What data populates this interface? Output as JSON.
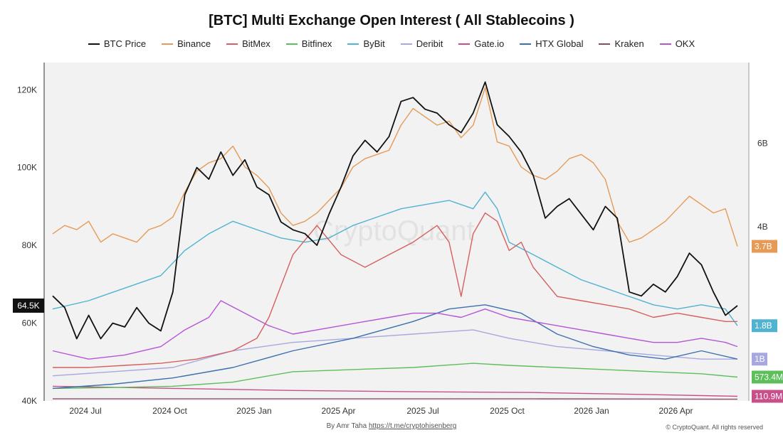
{
  "chart_data": {
    "type": "line",
    "title": "[BTC] Multi Exchange Open Interest ( All Stablecoins )",
    "x_ticks": [
      "2024 Jul",
      "2024 Oct",
      "2025 Jan",
      "2025 Apr",
      "2025 Jul",
      "2025 Oct",
      "2026 Jan",
      "2026 Apr"
    ],
    "x_range": [
      "2024-06",
      "2026-06"
    ],
    "left_axis": {
      "ticks": [
        "40K",
        "60K",
        "80K",
        "100K",
        "120K"
      ],
      "ylim": [
        40000,
        127000
      ]
    },
    "right_axis": {
      "ticks": [
        "4B",
        "6B"
      ],
      "ylim": [
        0,
        8100000000
      ]
    },
    "current_price_label": "64.5K",
    "grid": false,
    "legend_position": "top",
    "series": [
      {
        "name": "BTC Price",
        "color": "#111111",
        "axis": "left",
        "points": [
          [
            0,
            67
          ],
          [
            1,
            64
          ],
          [
            2,
            56
          ],
          [
            3,
            62
          ],
          [
            4,
            56
          ],
          [
            5,
            60
          ],
          [
            6,
            59
          ],
          [
            7,
            64
          ],
          [
            8,
            60
          ],
          [
            9,
            58
          ],
          [
            10,
            68
          ],
          [
            11,
            93
          ],
          [
            12,
            100
          ],
          [
            13,
            97
          ],
          [
            14,
            104
          ],
          [
            15,
            98
          ],
          [
            16,
            102
          ],
          [
            17,
            95
          ],
          [
            18,
            93
          ],
          [
            19,
            86
          ],
          [
            20,
            84
          ],
          [
            21,
            83
          ],
          [
            22,
            80
          ],
          [
            23,
            88
          ],
          [
            24,
            95
          ],
          [
            25,
            103
          ],
          [
            26,
            107
          ],
          [
            27,
            104
          ],
          [
            28,
            108
          ],
          [
            29,
            117
          ],
          [
            30,
            118
          ],
          [
            31,
            115
          ],
          [
            32,
            114
          ],
          [
            33,
            111
          ],
          [
            34,
            109
          ],
          [
            35,
            114
          ],
          [
            36,
            122
          ],
          [
            37,
            111
          ],
          [
            38,
            108
          ],
          [
            39,
            104
          ],
          [
            40,
            98
          ],
          [
            41,
            87
          ],
          [
            42,
            90
          ],
          [
            43,
            92
          ],
          [
            44,
            88
          ],
          [
            45,
            84
          ],
          [
            46,
            90
          ],
          [
            47,
            87
          ],
          [
            48,
            68
          ],
          [
            49,
            67
          ],
          [
            50,
            70
          ],
          [
            51,
            68
          ],
          [
            52,
            72
          ],
          [
            53,
            78
          ],
          [
            54,
            75
          ],
          [
            55,
            68
          ],
          [
            56,
            62
          ],
          [
            57,
            64.5
          ]
        ]
      },
      {
        "name": "Binance",
        "color": "#e59a55",
        "axis": "right",
        "label": "3.7B",
        "points": [
          [
            0,
            4.0
          ],
          [
            1,
            4.2
          ],
          [
            2,
            4.1
          ],
          [
            3,
            4.3
          ],
          [
            4,
            3.8
          ],
          [
            5,
            4.0
          ],
          [
            6,
            3.9
          ],
          [
            7,
            3.8
          ],
          [
            8,
            4.1
          ],
          [
            9,
            4.2
          ],
          [
            10,
            4.4
          ],
          [
            11,
            5.0
          ],
          [
            12,
            5.5
          ],
          [
            13,
            5.7
          ],
          [
            14,
            5.8
          ],
          [
            15,
            6.1
          ],
          [
            16,
            5.6
          ],
          [
            17,
            5.4
          ],
          [
            18,
            5.1
          ],
          [
            19,
            4.5
          ],
          [
            20,
            4.2
          ],
          [
            21,
            4.3
          ],
          [
            22,
            4.5
          ],
          [
            23,
            4.8
          ],
          [
            24,
            5.1
          ],
          [
            25,
            5.6
          ],
          [
            26,
            5.8
          ],
          [
            27,
            5.9
          ],
          [
            28,
            6.0
          ],
          [
            29,
            6.6
          ],
          [
            30,
            7.0
          ],
          [
            31,
            6.8
          ],
          [
            32,
            6.6
          ],
          [
            33,
            6.7
          ],
          [
            34,
            6.3
          ],
          [
            35,
            6.6
          ],
          [
            36,
            7.5
          ],
          [
            37,
            6.2
          ],
          [
            38,
            6.1
          ],
          [
            39,
            5.6
          ],
          [
            40,
            5.4
          ],
          [
            41,
            5.3
          ],
          [
            42,
            5.5
          ],
          [
            43,
            5.8
          ],
          [
            44,
            5.9
          ],
          [
            45,
            5.7
          ],
          [
            46,
            5.3
          ],
          [
            47,
            4.3
          ],
          [
            48,
            3.8
          ],
          [
            49,
            3.9
          ],
          [
            50,
            4.1
          ],
          [
            51,
            4.3
          ],
          [
            52,
            4.6
          ],
          [
            53,
            4.9
          ],
          [
            54,
            4.7
          ],
          [
            55,
            4.5
          ],
          [
            56,
            4.6
          ],
          [
            57,
            3.7
          ]
        ]
      },
      {
        "name": "BitMex",
        "color": "#d4605f",
        "axis": "right",
        "points": [
          [
            0,
            0.8
          ],
          [
            3,
            0.8
          ],
          [
            6,
            0.85
          ],
          [
            9,
            0.9
          ],
          [
            12,
            1.0
          ],
          [
            15,
            1.2
          ],
          [
            17,
            1.5
          ],
          [
            18,
            2.0
          ],
          [
            20,
            3.5
          ],
          [
            22,
            4.2
          ],
          [
            24,
            3.5
          ],
          [
            26,
            3.2
          ],
          [
            28,
            3.5
          ],
          [
            30,
            3.8
          ],
          [
            32,
            4.2
          ],
          [
            33,
            3.8
          ],
          [
            34,
            2.5
          ],
          [
            35,
            4.0
          ],
          [
            36,
            4.5
          ],
          [
            37,
            4.3
          ],
          [
            38,
            3.6
          ],
          [
            39,
            3.8
          ],
          [
            40,
            3.2
          ],
          [
            42,
            2.5
          ],
          [
            44,
            2.4
          ],
          [
            46,
            2.3
          ],
          [
            48,
            2.2
          ],
          [
            50,
            2.0
          ],
          [
            52,
            2.1
          ],
          [
            54,
            2.0
          ],
          [
            56,
            1.9
          ],
          [
            57,
            1.9
          ]
        ]
      },
      {
        "name": "Bitfinex",
        "color": "#5cbf5a",
        "axis": "right",
        "label": "573.4M",
        "points": [
          [
            0,
            0.3
          ],
          [
            5,
            0.32
          ],
          [
            10,
            0.35
          ],
          [
            15,
            0.45
          ],
          [
            18,
            0.6
          ],
          [
            20,
            0.7
          ],
          [
            25,
            0.75
          ],
          [
            30,
            0.8
          ],
          [
            35,
            0.9
          ],
          [
            38,
            0.85
          ],
          [
            42,
            0.8
          ],
          [
            46,
            0.75
          ],
          [
            50,
            0.7
          ],
          [
            54,
            0.65
          ],
          [
            57,
            0.57
          ]
        ]
      },
      {
        "name": "ByBit",
        "color": "#4fb3d1",
        "axis": "right",
        "label": "1.8B",
        "points": [
          [
            0,
            2.2
          ],
          [
            3,
            2.4
          ],
          [
            6,
            2.7
          ],
          [
            9,
            3.0
          ],
          [
            11,
            3.6
          ],
          [
            13,
            4.0
          ],
          [
            15,
            4.3
          ],
          [
            17,
            4.1
          ],
          [
            19,
            3.9
          ],
          [
            21,
            3.8
          ],
          [
            23,
            3.9
          ],
          [
            25,
            4.2
          ],
          [
            27,
            4.4
          ],
          [
            29,
            4.6
          ],
          [
            31,
            4.7
          ],
          [
            33,
            4.8
          ],
          [
            35,
            4.6
          ],
          [
            36,
            5.0
          ],
          [
            37,
            4.6
          ],
          [
            38,
            3.8
          ],
          [
            40,
            3.5
          ],
          [
            42,
            3.2
          ],
          [
            44,
            2.9
          ],
          [
            46,
            2.7
          ],
          [
            48,
            2.5
          ],
          [
            50,
            2.3
          ],
          [
            52,
            2.2
          ],
          [
            54,
            2.3
          ],
          [
            56,
            2.2
          ],
          [
            57,
            1.8
          ]
        ]
      },
      {
        "name": "Deribit",
        "color": "#a8a8e0",
        "axis": "right",
        "label": "1B",
        "points": [
          [
            0,
            0.6
          ],
          [
            5,
            0.7
          ],
          [
            10,
            0.8
          ],
          [
            15,
            1.2
          ],
          [
            20,
            1.4
          ],
          [
            25,
            1.5
          ],
          [
            30,
            1.6
          ],
          [
            35,
            1.7
          ],
          [
            38,
            1.5
          ],
          [
            42,
            1.3
          ],
          [
            46,
            1.2
          ],
          [
            50,
            1.1
          ],
          [
            54,
            1.0
          ],
          [
            57,
            1.0
          ]
        ]
      },
      {
        "name": "Gate.io",
        "color": "#c84f8a",
        "axis": "right",
        "label": "110.9M",
        "points": [
          [
            0,
            0.35
          ],
          [
            10,
            0.3
          ],
          [
            20,
            0.25
          ],
          [
            30,
            0.22
          ],
          [
            40,
            0.2
          ],
          [
            50,
            0.15
          ],
          [
            57,
            0.11
          ]
        ]
      },
      {
        "name": "HTX Global",
        "color": "#3b6fb0",
        "axis": "right",
        "points": [
          [
            0,
            0.3
          ],
          [
            5,
            0.4
          ],
          [
            10,
            0.55
          ],
          [
            15,
            0.8
          ],
          [
            20,
            1.2
          ],
          [
            25,
            1.5
          ],
          [
            30,
            1.9
          ],
          [
            33,
            2.2
          ],
          [
            36,
            2.3
          ],
          [
            39,
            2.1
          ],
          [
            42,
            1.6
          ],
          [
            45,
            1.3
          ],
          [
            48,
            1.1
          ],
          [
            51,
            1.0
          ],
          [
            54,
            1.2
          ],
          [
            57,
            1.0
          ]
        ]
      },
      {
        "name": "Kraken",
        "color": "#8a4a6a",
        "axis": "right",
        "points": [
          [
            0,
            0.05
          ],
          [
            20,
            0.05
          ],
          [
            40,
            0.05
          ],
          [
            57,
            0.04
          ]
        ]
      },
      {
        "name": "OKX",
        "color": "#b455d6",
        "axis": "right",
        "points": [
          [
            0,
            1.2
          ],
          [
            3,
            1.0
          ],
          [
            6,
            1.1
          ],
          [
            9,
            1.3
          ],
          [
            11,
            1.7
          ],
          [
            13,
            2.0
          ],
          [
            14,
            2.4
          ],
          [
            16,
            2.1
          ],
          [
            18,
            1.8
          ],
          [
            20,
            1.6
          ],
          [
            22,
            1.7
          ],
          [
            24,
            1.8
          ],
          [
            26,
            1.9
          ],
          [
            28,
            2.0
          ],
          [
            30,
            2.1
          ],
          [
            32,
            2.1
          ],
          [
            34,
            2.0
          ],
          [
            36,
            2.2
          ],
          [
            38,
            2.0
          ],
          [
            40,
            1.9
          ],
          [
            42,
            1.8
          ],
          [
            44,
            1.7
          ],
          [
            46,
            1.6
          ],
          [
            48,
            1.5
          ],
          [
            50,
            1.4
          ],
          [
            52,
            1.4
          ],
          [
            54,
            1.5
          ],
          [
            56,
            1.4
          ],
          [
            57,
            1.3
          ]
        ]
      }
    ]
  },
  "footer": {
    "credit_prefix": "By Amr Taha",
    "credit_link": "https://t.me/cryptohisenberg",
    "copyright": "© CryptoQuant. All rights reserved"
  },
  "watermark": "CryptoQuant"
}
